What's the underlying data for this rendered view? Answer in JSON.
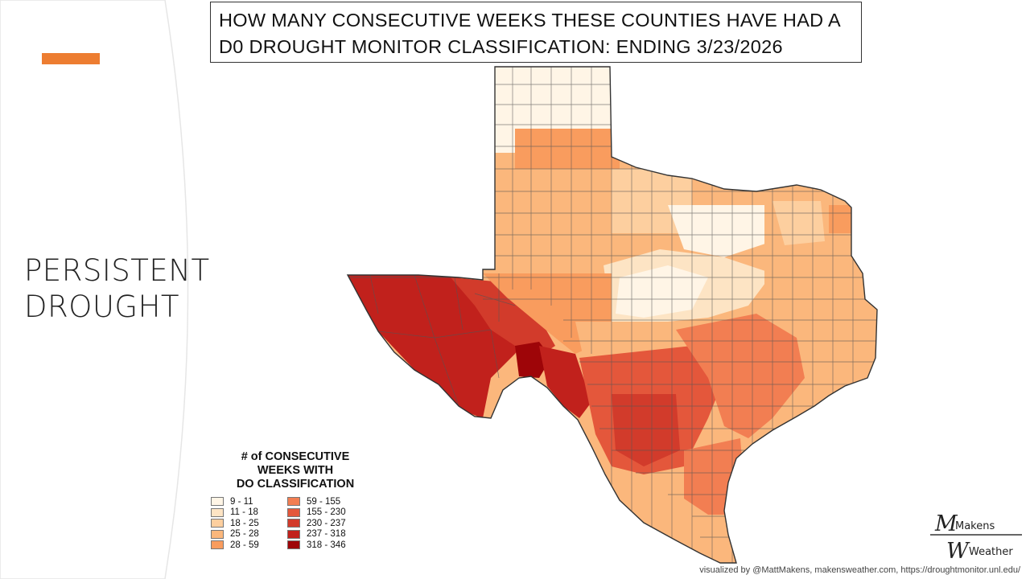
{
  "slide": {
    "section_title_line1": "PERSISTENT",
    "section_title_line2": "DROUGHT",
    "accent_color": "#ED7D31"
  },
  "map": {
    "title_line1": "HOW MANY CONSECUTIVE WEEKS THESE COUNTIES HAVE HAD A",
    "title_line2": "D0 DROUGHT MONITOR CLASSIFICATION: ENDING 3/23/2026",
    "region": "Texas counties",
    "legend": {
      "title_line1": "# of CONSECUTIVE",
      "title_line2": "WEEKS WITH",
      "title_line3": "DO CLASSIFICATION",
      "classes": [
        {
          "label": "9 - 11",
          "color": "#FFF5E6"
        },
        {
          "label": "11 - 18",
          "color": "#FDE4C4"
        },
        {
          "label": "18 - 25",
          "color": "#FDCF9F"
        },
        {
          "label": "25 - 28",
          "color": "#FBB77C"
        },
        {
          "label": "28 - 59",
          "color": "#F99C5E"
        },
        {
          "label": "59 - 155",
          "color": "#F27E52"
        },
        {
          "label": "155 - 230",
          "color": "#E4573B"
        },
        {
          "label": "230 - 237",
          "color": "#D23B2B"
        },
        {
          "label": "237 - 318",
          "color": "#C1211C"
        },
        {
          "label": "318 - 346",
          "color": "#9E0508"
        }
      ]
    }
  },
  "brand": {
    "line1": "Makens",
    "line2": "Weather"
  },
  "credit": "visualized by @MattMakens, makensweather.com, https://droughtmonitor.unl.edu/"
}
